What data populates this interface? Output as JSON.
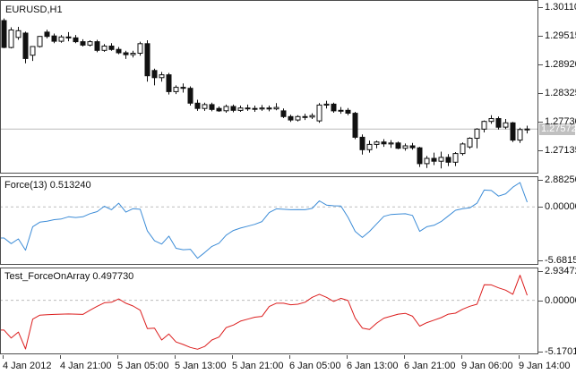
{
  "window_title": "EURUSD,H1",
  "time_axis": {
    "labels": [
      "4 Jan 2012",
      "4 Jan 21:00",
      "5 Jan 05:00",
      "5 Jan 13:00",
      "5 Jan 21:00",
      "6 Jan 05:00",
      "6 Jan 13:00",
      "6 Jan 21:00",
      "9 Jan 06:00",
      "9 Jan 14:00"
    ]
  },
  "chart_data": [
    {
      "type": "candlestick",
      "title": "EURUSD,H1",
      "symbol": "EURUSD",
      "timeframe": "H1",
      "y_ticks": [
        "1.30110",
        "1.29515",
        "1.28920",
        "1.28325",
        "1.27730",
        "1.27135"
      ],
      "current_price": "1.27572",
      "current_price_bg": "#c0c0c0",
      "bull_color": "#ffffff",
      "bear_color": "#111111",
      "ohlc": [
        [
          1.2983,
          1.29875,
          1.29255,
          1.2927
        ],
        [
          1.2927,
          1.2969,
          1.2925,
          1.29635
        ],
        [
          1.2948,
          1.297,
          1.2943,
          1.2962
        ],
        [
          1.2957,
          1.296,
          1.2894,
          1.2904
        ],
        [
          1.2911,
          1.293,
          1.2899,
          1.2929
        ],
        [
          1.2929,
          1.2951,
          1.2927,
          1.295
        ],
        [
          1.2959,
          1.2964,
          1.2946,
          1.295
        ],
        [
          1.2951,
          1.2956,
          1.2936,
          1.294
        ],
        [
          1.294,
          1.2953,
          1.2937,
          1.2949
        ],
        [
          1.2949,
          1.2959,
          1.294,
          1.2947
        ],
        [
          1.2947,
          1.2953,
          1.2936,
          1.2939
        ],
        [
          1.2939,
          1.2944,
          1.2929,
          1.2932
        ],
        [
          1.2932,
          1.2942,
          1.2929,
          1.2939
        ],
        [
          1.2939,
          1.2943,
          1.2917,
          1.2921
        ],
        [
          1.2921,
          1.2934,
          1.2918,
          1.293
        ],
        [
          1.293,
          1.2936,
          1.292,
          1.2923
        ],
        [
          1.2923,
          1.2928,
          1.2913,
          1.2916
        ],
        [
          1.2916,
          1.292,
          1.2903,
          1.2912
        ],
        [
          1.2912,
          1.292,
          1.2906,
          1.2915
        ],
        [
          1.2915,
          1.2939,
          1.291,
          1.2935
        ],
        [
          1.2935,
          1.2942,
          1.2856,
          1.2868
        ],
        [
          1.2879,
          1.2883,
          1.2848,
          1.2864
        ],
        [
          1.2864,
          1.2876,
          1.2856,
          1.287
        ],
        [
          1.287,
          1.2874,
          1.2829,
          1.2835
        ],
        [
          1.2835,
          1.2848,
          1.283,
          1.2844
        ],
        [
          1.2844,
          1.2852,
          1.2833,
          1.2842
        ],
        [
          1.2842,
          1.2846,
          1.2806,
          1.2811
        ],
        [
          1.2811,
          1.2818,
          1.2795,
          1.28
        ],
        [
          1.28,
          1.2812,
          1.2795,
          1.2808
        ],
        [
          1.2808,
          1.2812,
          1.2794,
          1.2798
        ],
        [
          1.28,
          1.2804,
          1.2793,
          1.2795
        ],
        [
          1.2795,
          1.2808,
          1.2791,
          1.2804
        ],
        [
          1.2804,
          1.2808,
          1.2792,
          1.2796
        ],
        [
          1.2796,
          1.2806,
          1.2793,
          1.2801
        ],
        [
          1.2801,
          1.2808,
          1.2795,
          1.28
        ],
        [
          1.28,
          1.2806,
          1.2793,
          1.2799
        ],
        [
          1.2799,
          1.2807,
          1.2795,
          1.2801
        ],
        [
          1.2801,
          1.2806,
          1.2794,
          1.2799
        ],
        [
          1.2799,
          1.2811,
          1.2796,
          1.2802
        ],
        [
          1.2795,
          1.28,
          1.278,
          1.2783
        ],
        [
          1.2783,
          1.2787,
          1.2772,
          1.2776
        ],
        [
          1.2776,
          1.2786,
          1.2773,
          1.2783
        ],
        [
          1.2783,
          1.2789,
          1.2776,
          1.2782
        ],
        [
          1.2782,
          1.279,
          1.2778,
          1.2785
        ],
        [
          1.2774,
          1.2811,
          1.277,
          1.2807
        ],
        [
          1.2807,
          1.2816,
          1.28,
          1.2809
        ],
        [
          1.2809,
          1.2812,
          1.2791,
          1.2795
        ],
        [
          1.2795,
          1.2803,
          1.2789,
          1.2796
        ],
        [
          1.2796,
          1.2801,
          1.2786,
          1.279
        ],
        [
          1.279,
          1.2793,
          1.2736,
          1.274
        ],
        [
          1.274,
          1.2746,
          1.2704,
          1.2714
        ],
        [
          1.2714,
          1.2733,
          1.2708,
          1.2725
        ],
        [
          1.2725,
          1.2733,
          1.2717,
          1.273
        ],
        [
          1.273,
          1.2736,
          1.272,
          1.2726
        ],
        [
          1.2726,
          1.2734,
          1.2718,
          1.2728
        ],
        [
          1.2728,
          1.2731,
          1.2715,
          1.2717
        ],
        [
          1.2717,
          1.2727,
          1.2712,
          1.2722
        ],
        [
          1.2722,
          1.2728,
          1.2714,
          1.2718
        ],
        [
          1.2718,
          1.272,
          1.2678,
          1.2685
        ],
        [
          1.2685,
          1.2701,
          1.2676,
          1.2696
        ],
        [
          1.2696,
          1.2708,
          1.2682,
          1.269
        ],
        [
          1.269,
          1.271,
          1.2675,
          1.2698
        ],
        [
          1.2698,
          1.2705,
          1.268,
          1.2688
        ],
        [
          1.2688,
          1.2709,
          1.268,
          1.2706
        ],
        [
          1.2706,
          1.2729,
          1.2702,
          1.2726
        ],
        [
          1.272,
          1.274,
          1.2716,
          1.2738
        ],
        [
          1.2738,
          1.2759,
          1.2717,
          1.2757
        ],
        [
          1.2757,
          1.2775,
          1.275,
          1.2773
        ],
        [
          1.2773,
          1.2786,
          1.2768,
          1.2779
        ],
        [
          1.2779,
          1.2783,
          1.2756,
          1.2761
        ],
        [
          1.2761,
          1.2778,
          1.2757,
          1.277
        ],
        [
          1.277,
          1.2772,
          1.273,
          1.2734
        ],
        [
          1.2734,
          1.276,
          1.2728,
          1.2756
        ],
        [
          1.2756,
          1.2764,
          1.2748,
          1.27572
        ]
      ]
    },
    {
      "type": "line",
      "title": "Force(13) 0.513240",
      "name": "Force(13)",
      "current_value": "0.513240",
      "y_ticks": [
        "2.882501",
        "0.000000",
        "-5.681525"
      ],
      "color": "#3c8cd7",
      "values": [
        -3.3,
        -3.9,
        -3.4,
        -4.6,
        -2.1,
        -1.62,
        -1.52,
        -1.35,
        -1.28,
        -1.05,
        -1.12,
        -1.05,
        -0.71,
        -0.5,
        0.08,
        -0.3,
        0.4,
        -0.55,
        -0.18,
        -0.25,
        -2.55,
        -3.6,
        -3.95,
        -3.1,
        -4.4,
        -4.55,
        -4.5,
        -5.45,
        -4.85,
        -4.2,
        -3.85,
        -3.0,
        -2.5,
        -2.25,
        -2.05,
        -1.85,
        -1.55,
        -0.6,
        -0.2,
        -0.25,
        -0.3,
        -0.28,
        -0.3,
        -0.15,
        0.65,
        0.2,
        0.12,
        0.1,
        -1.1,
        -2.6,
        -3.25,
        -2.6,
        -1.8,
        -1.0,
        -0.8,
        -0.75,
        -0.72,
        -0.9,
        -2.6,
        -2.1,
        -1.95,
        -1.55,
        -0.95,
        -0.35,
        -0.18,
        -0.1,
        0.4,
        1.8,
        1.75,
        1.15,
        1.4,
        2.1,
        2.6,
        0.513
      ]
    },
    {
      "type": "line",
      "title": "Test_ForceOnArray 0.497730",
      "name": "Test_ForceOnArray",
      "current_value": "0.497730",
      "y_ticks": [
        "2.934726",
        "0.000000",
        "-5.170169"
      ],
      "color": "#dc1e1e",
      "values": [
        -3.0,
        -3.8,
        -3.2,
        -4.9,
        -1.9,
        -1.5,
        -1.46,
        -1.42,
        -1.4,
        -1.38,
        -1.4,
        -1.42,
        -1.0,
        -0.6,
        -0.25,
        -0.2,
        0.13,
        -0.3,
        -0.58,
        -1.0,
        -2.85,
        -2.8,
        -4.0,
        -3.4,
        -4.2,
        -4.45,
        -4.75,
        -4.93,
        -4.65,
        -4.0,
        -3.7,
        -2.75,
        -2.5,
        -2.1,
        -1.9,
        -1.7,
        -1.62,
        -0.63,
        -0.3,
        -0.3,
        -0.45,
        -0.4,
        -0.2,
        0.3,
        0.6,
        0.3,
        -0.12,
        0.2,
        -0.03,
        -1.8,
        -2.8,
        -2.95,
        -2.3,
        -1.8,
        -1.6,
        -1.4,
        -1.32,
        -1.6,
        -2.6,
        -2.25,
        -2.0,
        -1.75,
        -1.4,
        -1.3,
        -0.9,
        -0.6,
        -0.4,
        1.56,
        1.55,
        1.25,
        1.02,
        0.6,
        2.52,
        0.4977
      ]
    }
  ]
}
